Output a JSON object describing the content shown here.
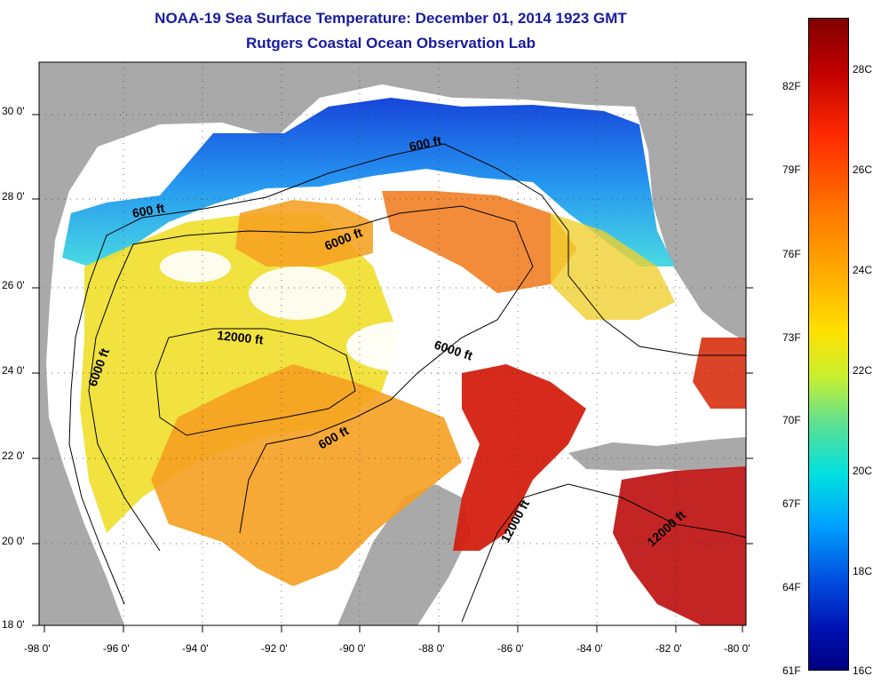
{
  "title": {
    "line1": "NOAA-19 Sea Surface Temperature:  December 01, 2014 1923 GMT",
    "line2": "Rutgers Coastal Ocean Observation Lab"
  },
  "map": {
    "lon_labels": [
      "-98 0'",
      "-96 0'",
      "-94 0'",
      "-92 0'",
      "-90 0'",
      "-88 0'",
      "-86 0'",
      "-84 0'",
      "-82 0'",
      "-80 0'"
    ],
    "lat_labels": [
      "30 0'",
      "28 0'",
      "26 0'",
      "24 0'",
      "22 0'",
      "20 0'",
      "18 0'"
    ],
    "contour_labels": [
      "600 ft",
      "600 ft",
      "6000 ft",
      "12000 ft",
      "6000 ft",
      "6000 ft",
      "600 ft",
      "12000 ft",
      "12000 ft"
    ],
    "colors": {
      "land": "#a9a9a9",
      "no_data": "#ffffff",
      "cold": "#0a3cd8",
      "cool": "#30c8e8",
      "mild": "#f0e030",
      "warm": "#f5a020",
      "hot": "#d42010"
    }
  },
  "colorbar": {
    "fahrenheit": [
      "82F",
      "79F",
      "76F",
      "73F",
      "70F",
      "67F",
      "64F",
      "61F"
    ],
    "celsius": [
      "28C",
      "26C",
      "24C",
      "22C",
      "20C",
      "18C",
      "16C"
    ]
  }
}
